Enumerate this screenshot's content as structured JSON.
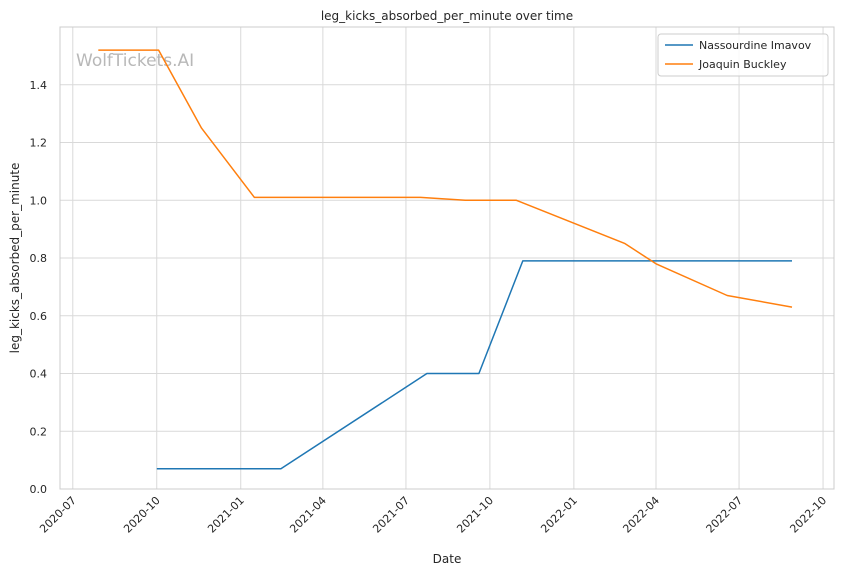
{
  "chart_data": {
    "type": "line",
    "title": "leg_kicks_absorbed_per_minute over time",
    "xlabel": "Date",
    "ylabel": "leg_kicks_absorbed_per_minute",
    "watermark": "WolfTickets.AI",
    "xlim": [
      "2020-06-17",
      "2022-10-13"
    ],
    "ylim": [
      0,
      1.6
    ],
    "x_ticks": [
      "2020-07",
      "2020-10",
      "2021-01",
      "2021-04",
      "2021-07",
      "2021-10",
      "2022-01",
      "2022-04",
      "2022-07",
      "2022-10"
    ],
    "y_ticks": [
      "0.0",
      "0.2",
      "0.4",
      "0.6",
      "0.8",
      "1.0",
      "1.2",
      "1.4"
    ],
    "grid": true,
    "legend_position": "top-right",
    "series": [
      {
        "name": "Nassourdine Imavov",
        "color": "#1f77b4",
        "x": [
          "2020-10-01",
          "2021-02-14",
          "2021-07-24",
          "2021-09-19",
          "2021-11-06",
          "2022-06-04",
          "2022-08-28"
        ],
        "y": [
          0.07,
          0.07,
          0.4,
          0.4,
          0.79,
          0.79,
          0.79
        ]
      },
      {
        "name": "Joaquin Buckley",
        "color": "#ff7f0e",
        "x": [
          "2020-07-29",
          "2020-10-03",
          "2020-11-19",
          "2021-01-16",
          "2021-07-17",
          "2021-09-04",
          "2021-10-30",
          "2022-02-26",
          "2022-04-01",
          "2022-06-18",
          "2022-08-28"
        ],
        "y": [
          1.52,
          1.52,
          1.25,
          1.01,
          1.01,
          1.0,
          1.0,
          0.85,
          0.78,
          0.67,
          0.63
        ]
      }
    ]
  }
}
